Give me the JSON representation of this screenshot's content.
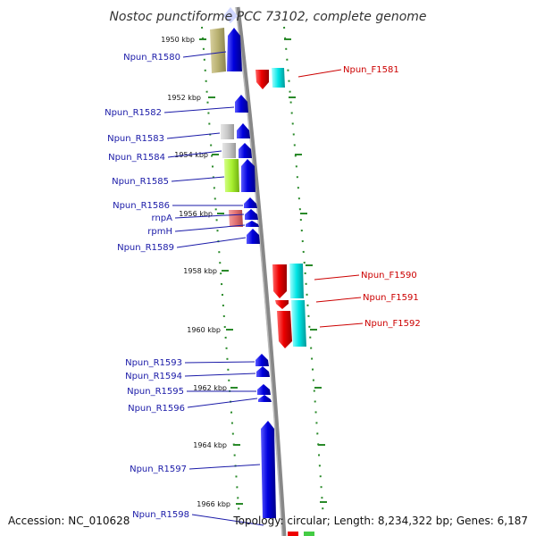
{
  "title": "Nostoc punctiforme PCC 73102, complete genome",
  "footer": {
    "accession": "Accession: NC_010628",
    "topology": "Topology: circular; Length: 8,234,322 bp; Genes: 6,187"
  },
  "ticks": [
    "1950 kbp",
    "1952 kbp",
    "1954 kbp",
    "1956 kbp",
    "1958 kbp",
    "1960 kbp",
    "1962 kbp",
    "1964 kbp",
    "1966 kbp"
  ],
  "reverse_labels": [
    "Npun_R1580",
    "Npun_R1582",
    "Npun_R1583",
    "Npun_R1584",
    "Npun_R1585",
    "Npun_R1586",
    "rnpA",
    "rpmH",
    "Npun_R1589",
    "Npun_R1593",
    "Npun_R1594",
    "Npun_R1595",
    "Npun_R1596",
    "Npun_R1597",
    "Npun_R1598"
  ],
  "forward_labels": [
    "Npun_F1581",
    "Npun_F1590",
    "Npun_F1591",
    "Npun_F1592"
  ],
  "colors": {
    "reverse_gene": "#0000dd",
    "forward_gene": "#ee0000",
    "cog_cyan": "#00e5e5",
    "cog_olive": "#b8b070",
    "cog_gray": "#c8c8c8",
    "cog_green": "#a8f030",
    "cog_pink": "#e07070",
    "backbone": "#888888",
    "dotted": "#2a8a2a"
  }
}
